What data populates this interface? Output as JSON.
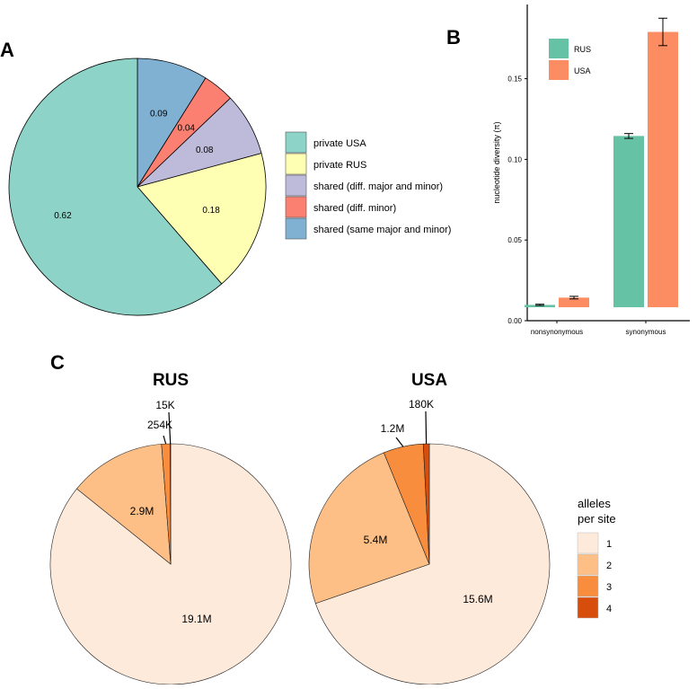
{
  "panel_labels": {
    "a": "A",
    "b": "B",
    "c": "C"
  },
  "chart_data": [
    {
      "id": "A",
      "type": "pie",
      "labels": [
        "private USA",
        "private RUS",
        "shared (diff. major and minor)",
        "shared (diff. minor)",
        "shared (same major and minor)"
      ],
      "values": [
        0.62,
        0.18,
        0.08,
        0.04,
        0.09
      ],
      "value_labels": [
        "0.62",
        "0.18",
        "0.08",
        "0.04",
        "0.09"
      ],
      "colors": [
        "#8dd3c7",
        "#ffffb3",
        "#bebada",
        "#fb8072",
        "#80b1d3"
      ],
      "start": "12 o'clock",
      "direction": "clockwise, shared (same major and minor) first then counter-clockwise order as legend reversed",
      "legend_position": "right"
    },
    {
      "id": "B",
      "type": "bar",
      "categories": [
        "nonsynonymous",
        "synonymous"
      ],
      "series": [
        {
          "name": "RUS",
          "color": "#66c2a5",
          "values": [
            0.0098,
            0.1145
          ],
          "errors": [
            0.0004,
            0.0015
          ]
        },
        {
          "name": "USA",
          "color": "#fc8d62",
          "values": [
            0.0143,
            0.179
          ],
          "errors": [
            0.0008,
            0.0085
          ]
        }
      ],
      "ylabel": "nucleotide diversity (π)",
      "xlabel": "",
      "ylim": [
        0,
        0.196
      ],
      "yticks": [
        0.0,
        0.05,
        0.1,
        0.15
      ],
      "ytick_labels": [
        "0.00",
        "0.05",
        "0.10",
        "0.15"
      ],
      "legend_position": "top-left"
    },
    {
      "id": "C-RUS",
      "type": "pie",
      "title": "RUS",
      "labels": [
        "1",
        "2",
        "3",
        "4"
      ],
      "values": [
        19.1,
        2.9,
        0.254,
        0.015
      ],
      "value_labels": [
        "19.1M",
        "2.9M",
        "254K",
        "15K"
      ],
      "colors": [
        "#feeadb",
        "#fdbf86",
        "#f88d3d",
        "#d64d0c"
      ]
    },
    {
      "id": "C-USA",
      "type": "pie",
      "title": "USA",
      "labels": [
        "1",
        "2",
        "3",
        "4"
      ],
      "values": [
        15.6,
        5.4,
        1.2,
        0.18
      ],
      "value_labels": [
        "15.6M",
        "5.4M",
        "1.2M",
        "180K"
      ],
      "colors": [
        "#feeadb",
        "#fdbf86",
        "#f88d3d",
        "#d64d0c"
      ]
    }
  ],
  "legend_c": {
    "title_line1": "alleles",
    "title_line2": "per site",
    "items": [
      "1",
      "2",
      "3",
      "4"
    ]
  }
}
